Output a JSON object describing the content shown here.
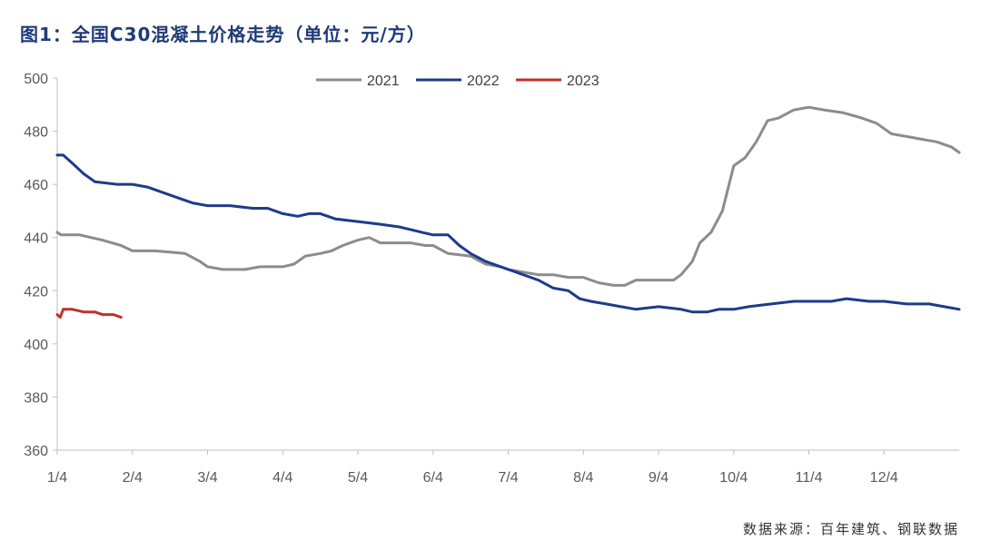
{
  "title": "图1：全国C30混凝土价格走势（单位：元/方）",
  "source": "数据来源：百年建筑、钢联数据",
  "colors": {
    "2021": "#8c8c8c",
    "2022": "#1f3a8a",
    "2023": "#c0302b"
  },
  "chart_data": {
    "type": "line",
    "title": "图1：全国C30混凝土价格走势（单位：元/方）",
    "xlabel": "",
    "ylabel": "",
    "x_ticks": [
      "1/4",
      "2/4",
      "3/4",
      "4/4",
      "5/4",
      "6/4",
      "7/4",
      "8/4",
      "9/4",
      "10/4",
      "11/4",
      "12/4"
    ],
    "y_ticks": [
      360,
      380,
      400,
      420,
      440,
      460,
      480,
      500
    ],
    "ylim": [
      360,
      500
    ],
    "x_unit": "month (fractional, 1 = 1/4)",
    "legend_position": "top-center",
    "grid": false,
    "series": [
      {
        "name": "2021",
        "points": [
          [
            1.0,
            442
          ],
          [
            1.05,
            441
          ],
          [
            1.3,
            441
          ],
          [
            1.45,
            440
          ],
          [
            1.6,
            439
          ],
          [
            1.85,
            437
          ],
          [
            2.0,
            435
          ],
          [
            2.3,
            435
          ],
          [
            2.7,
            434
          ],
          [
            2.9,
            431
          ],
          [
            3.0,
            429
          ],
          [
            3.2,
            428
          ],
          [
            3.5,
            428
          ],
          [
            3.7,
            429
          ],
          [
            4.0,
            429
          ],
          [
            4.15,
            430
          ],
          [
            4.3,
            433
          ],
          [
            4.5,
            434
          ],
          [
            4.65,
            435
          ],
          [
            4.8,
            437
          ],
          [
            5.0,
            439
          ],
          [
            5.15,
            440
          ],
          [
            5.3,
            438
          ],
          [
            5.5,
            438
          ],
          [
            5.7,
            438
          ],
          [
            5.9,
            437
          ],
          [
            6.0,
            437
          ],
          [
            6.2,
            434
          ],
          [
            6.5,
            433
          ],
          [
            6.7,
            430
          ],
          [
            6.9,
            429
          ],
          [
            7.0,
            428
          ],
          [
            7.2,
            427
          ],
          [
            7.4,
            426
          ],
          [
            7.6,
            426
          ],
          [
            7.8,
            425
          ],
          [
            8.0,
            425
          ],
          [
            8.2,
            423
          ],
          [
            8.4,
            422
          ],
          [
            8.55,
            422
          ],
          [
            8.7,
            424
          ],
          [
            9.0,
            424
          ],
          [
            9.2,
            424
          ],
          [
            9.3,
            426
          ],
          [
            9.45,
            431
          ],
          [
            9.55,
            438
          ],
          [
            9.7,
            442
          ],
          [
            9.85,
            450
          ],
          [
            10.0,
            467
          ],
          [
            10.15,
            470
          ],
          [
            10.3,
            476
          ],
          [
            10.45,
            484
          ],
          [
            10.6,
            485
          ],
          [
            10.8,
            488
          ],
          [
            11.0,
            489
          ],
          [
            11.2,
            488
          ],
          [
            11.45,
            487
          ],
          [
            11.7,
            485
          ],
          [
            11.9,
            483
          ],
          [
            12.1,
            479
          ],
          [
            12.3,
            478
          ],
          [
            12.5,
            477
          ],
          [
            12.7,
            476
          ],
          [
            12.9,
            474
          ],
          [
            13.0,
            472
          ]
        ]
      },
      {
        "name": "2022",
        "points": [
          [
            1.0,
            471
          ],
          [
            1.08,
            471
          ],
          [
            1.2,
            468
          ],
          [
            1.35,
            464
          ],
          [
            1.5,
            461
          ],
          [
            1.8,
            460
          ],
          [
            2.0,
            460
          ],
          [
            2.2,
            459
          ],
          [
            2.4,
            457
          ],
          [
            2.6,
            455
          ],
          [
            2.8,
            453
          ],
          [
            3.0,
            452
          ],
          [
            3.3,
            452
          ],
          [
            3.6,
            451
          ],
          [
            3.8,
            451
          ],
          [
            4.0,
            449
          ],
          [
            4.2,
            448
          ],
          [
            4.35,
            449
          ],
          [
            4.5,
            449
          ],
          [
            4.7,
            447
          ],
          [
            5.0,
            446
          ],
          [
            5.3,
            445
          ],
          [
            5.55,
            444
          ],
          [
            5.7,
            443
          ],
          [
            5.85,
            442
          ],
          [
            6.0,
            441
          ],
          [
            6.2,
            441
          ],
          [
            6.35,
            437
          ],
          [
            6.5,
            434
          ],
          [
            6.7,
            431
          ],
          [
            6.9,
            429
          ],
          [
            7.0,
            428
          ],
          [
            7.2,
            426
          ],
          [
            7.4,
            424
          ],
          [
            7.6,
            421
          ],
          [
            7.8,
            420
          ],
          [
            7.95,
            417
          ],
          [
            8.1,
            416
          ],
          [
            8.3,
            415
          ],
          [
            8.5,
            414
          ],
          [
            8.7,
            413
          ],
          [
            9.0,
            414
          ],
          [
            9.3,
            413
          ],
          [
            9.45,
            412
          ],
          [
            9.65,
            412
          ],
          [
            9.8,
            413
          ],
          [
            10.0,
            413
          ],
          [
            10.2,
            414
          ],
          [
            10.5,
            415
          ],
          [
            10.8,
            416
          ],
          [
            11.0,
            416
          ],
          [
            11.3,
            416
          ],
          [
            11.5,
            417
          ],
          [
            11.8,
            416
          ],
          [
            12.0,
            416
          ],
          [
            12.3,
            415
          ],
          [
            12.6,
            415
          ],
          [
            12.8,
            414
          ],
          [
            13.0,
            413
          ]
        ]
      },
      {
        "name": "2023",
        "points": [
          [
            1.0,
            411
          ],
          [
            1.04,
            410
          ],
          [
            1.08,
            413
          ],
          [
            1.2,
            413
          ],
          [
            1.35,
            412
          ],
          [
            1.5,
            412
          ],
          [
            1.6,
            411
          ],
          [
            1.75,
            411
          ],
          [
            1.85,
            410
          ]
        ]
      }
    ]
  }
}
